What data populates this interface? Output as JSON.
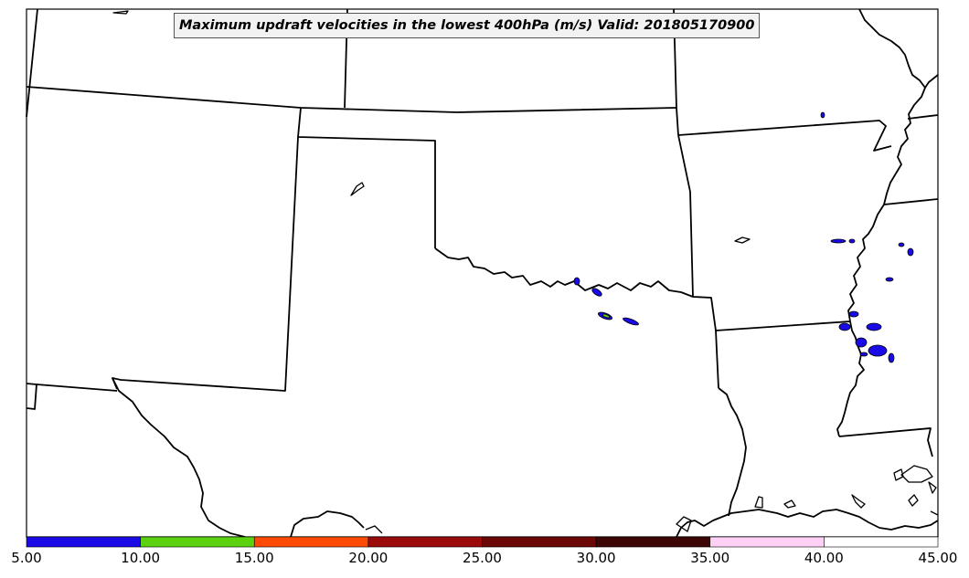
{
  "title": "Maximum updraft velocities in the lowest 400hPa (m/s) Valid: 201805170900",
  "colorbar": {
    "ticks": [
      "5.00",
      "10.00",
      "15.00",
      "20.00",
      "25.00",
      "30.00",
      "35.00",
      "40.00",
      "45.00"
    ],
    "colors": [
      "#1a0be6",
      "#5cd10f",
      "#ff4a05",
      "#9a0a0a",
      "#6b0707",
      "#3d0505",
      "#ffd0f5",
      "#ffffff"
    ]
  }
}
